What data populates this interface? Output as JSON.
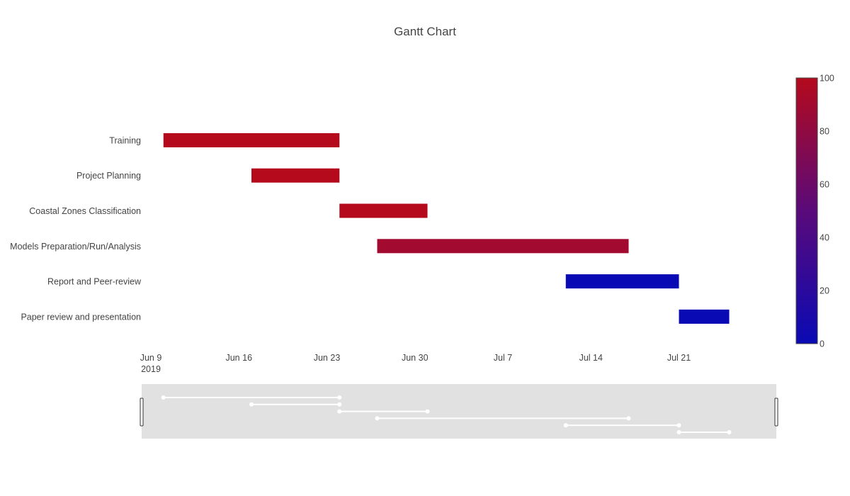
{
  "chart_data": {
    "type": "gantt",
    "title": "Gantt Chart",
    "x_axis": {
      "type": "date",
      "range": [
        "2019-06-09",
        "2019-07-28"
      ],
      "ticks": [
        {
          "date": "2019-06-09",
          "label": "Jun 9",
          "sublabel": "2019"
        },
        {
          "date": "2019-06-16",
          "label": "Jun 16"
        },
        {
          "date": "2019-06-23",
          "label": "Jun 23"
        },
        {
          "date": "2019-06-30",
          "label": "Jun 30"
        },
        {
          "date": "2019-07-07",
          "label": "Jul 7"
        },
        {
          "date": "2019-07-14",
          "label": "Jul 14"
        },
        {
          "date": "2019-07-21",
          "label": "Jul 21"
        }
      ]
    },
    "tasks": [
      {
        "name": "Training",
        "start": "2019-06-10",
        "end": "2019-06-24",
        "complete": 100
      },
      {
        "name": "Project Planning",
        "start": "2019-06-17",
        "end": "2019-06-24",
        "complete": 100
      },
      {
        "name": "Coastal Zones Classification",
        "start": "2019-06-24",
        "end": "2019-07-01",
        "complete": 100
      },
      {
        "name": "Models Preparation/Run/Analysis",
        "start": "2019-06-27",
        "end": "2019-07-17",
        "complete": 90
      },
      {
        "name": "Report and Peer-review",
        "start": "2019-07-12",
        "end": "2019-07-21",
        "complete": 0
      },
      {
        "name": "Paper review and presentation",
        "start": "2019-07-21",
        "end": "2019-07-25",
        "complete": 0
      }
    ],
    "colorscale": {
      "min": 0,
      "max": 100,
      "low_color": "#0a0ab4",
      "mid_color": "#5a0a7a",
      "high_color": "#b40a1c",
      "ticks": [
        0,
        20,
        40,
        60,
        80,
        100
      ]
    },
    "rangeslider": {
      "visible": true
    }
  }
}
